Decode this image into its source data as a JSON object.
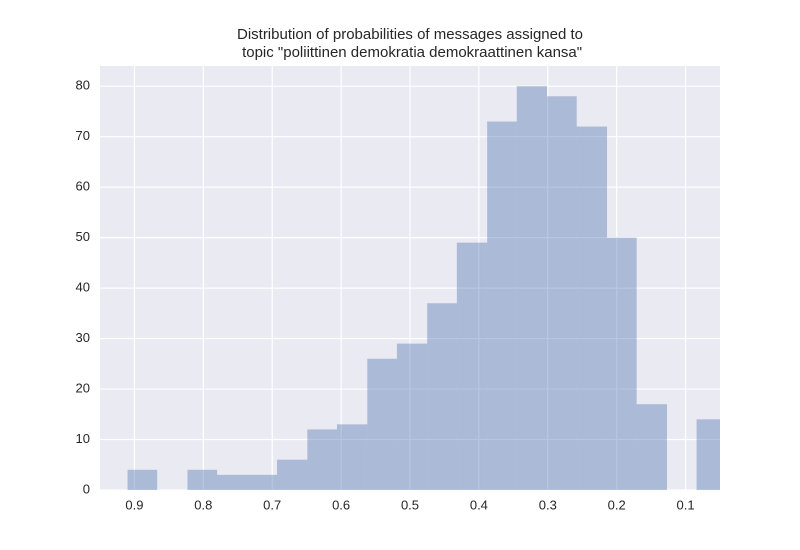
{
  "chart_data": {
    "type": "histogram",
    "title": [
      "Distribution of probabilities of messages assigned to",
      " topic \"poliittinen demokratia demokraattinen kansa\""
    ],
    "bins": [
      0.91,
      0.867,
      0.823,
      0.78,
      0.736,
      0.693,
      0.649,
      0.606,
      0.562,
      0.519,
      0.475,
      0.432,
      0.388,
      0.345,
      0.301,
      0.258,
      0.214,
      0.171,
      0.127,
      0.084,
      0.04
    ],
    "counts": [
      4,
      0,
      4,
      3,
      3,
      6,
      12,
      13,
      26,
      29,
      37,
      49,
      73,
      80,
      78,
      72,
      50,
      17,
      0,
      14
    ],
    "color": "#4c72b0",
    "alpha": 0.4,
    "xlim": [
      0.95,
      0.05
    ],
    "xticks": [
      0.9,
      0.8,
      0.7,
      0.6,
      0.5,
      0.4,
      0.3,
      0.2,
      0.1
    ],
    "ylim": [
      0,
      84
    ],
    "yticks": [
      0,
      10,
      20,
      30,
      40,
      50,
      60,
      70,
      80
    ],
    "grid": true
  }
}
